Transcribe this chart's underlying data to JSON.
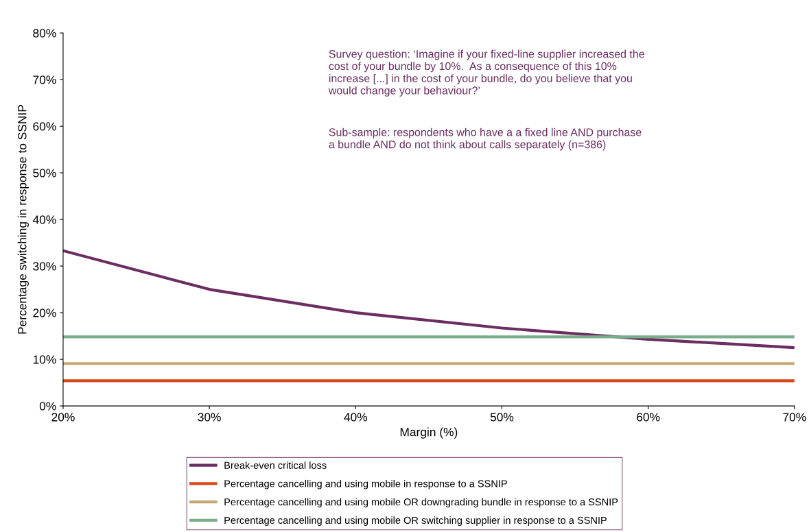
{
  "chart_data": {
    "type": "line",
    "xlabel": "Margin (%)",
    "ylabel": "Percentage switching in response to SSNIP",
    "x": [
      20,
      30,
      40,
      50,
      60,
      70
    ],
    "xlim": [
      20,
      70
    ],
    "xticks": [
      {
        "value": 20,
        "label": "20%"
      },
      {
        "value": 30,
        "label": "30%"
      },
      {
        "value": 40,
        "label": "40%"
      },
      {
        "value": 50,
        "label": "50%"
      },
      {
        "value": 60,
        "label": "60%"
      },
      {
        "value": 70,
        "label": "70%"
      }
    ],
    "ylim": [
      0,
      80
    ],
    "yticks": [
      {
        "value": 0,
        "label": "0%"
      },
      {
        "value": 10,
        "label": "10%"
      },
      {
        "value": 20,
        "label": "20%"
      },
      {
        "value": 30,
        "label": "30%"
      },
      {
        "value": 40,
        "label": "40%"
      },
      {
        "value": 50,
        "label": "50%"
      },
      {
        "value": 60,
        "label": "60%"
      },
      {
        "value": 70,
        "label": "70%"
      },
      {
        "value": 80,
        "label": "80%"
      }
    ],
    "series": [
      {
        "name": "Break-even critical loss",
        "color": "#6b2d62",
        "values": [
          33.3,
          25,
          20,
          16.7,
          14.3,
          12.5
        ]
      },
      {
        "name": "Percentage cancelling and using mobile in response to a SSNIP",
        "color": "#d84a1b",
        "values": [
          5.4,
          5.4,
          5.4,
          5.4,
          5.4,
          5.4
        ]
      },
      {
        "name": "Percentage cancelling and using mobile OR downgrading bundle in response to a SSNIP",
        "color": "#c8a872",
        "values": [
          9.1,
          9.1,
          9.1,
          9.1,
          9.1,
          9.1
        ]
      },
      {
        "name": "Percentage cancelling and using mobile OR switching supplier in response to a SSNIP",
        "color": "#7aae8a",
        "values": [
          14.8,
          14.8,
          14.8,
          14.8,
          14.8,
          14.8
        ]
      }
    ],
    "annotations": [
      "Survey question: ‘Imagine if your fixed-line supplier increased the\ncost of your bundle by 10%.  As a consequence of this 10%\nincrease [...] in the cost of your bundle, do you believe that you\nwould change your behaviour?’",
      "Sub-sample: respondents who have a a fixed line AND purchase\na bundle AND do not think about calls separately (n=386)"
    ],
    "grid": false,
    "legend": "bottom",
    "marker": "none",
    "line_style": "solid"
  }
}
